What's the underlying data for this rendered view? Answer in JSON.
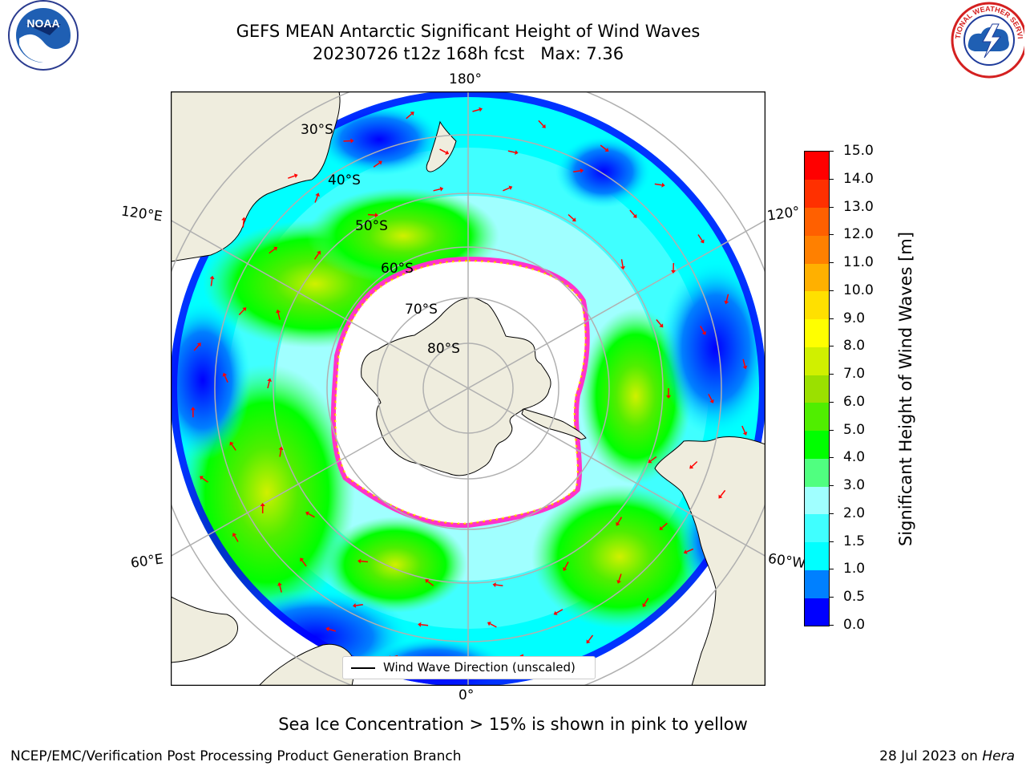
{
  "header": {
    "title_line1": "GEFS MEAN Antarctic Significant Height of Wind Waves",
    "title_line2": "20230726 t12z 168h fcst   Max: 7.36"
  },
  "logos": {
    "left": {
      "icon": "noaa-logo",
      "text": "NOAA"
    },
    "right": {
      "icon": "national-weather-service-logo",
      "text": "NATIONAL WEATHER SERVICE"
    }
  },
  "map": {
    "projection": "south-polar-stereographic",
    "meridian_labels": {
      "top": "180°",
      "bottom": "0°",
      "upper_left": "120°E",
      "upper_right": "120°",
      "lower_left": "60°E",
      "lower_right": "60°W"
    },
    "latitude_labels": [
      "30°S",
      "40°S",
      "50°S",
      "60°S",
      "70°S",
      "80°S"
    ],
    "arrow_color": "#ff0000",
    "land_color": "#efedde",
    "ice_edge_colors": [
      "#ff33cc",
      "#ff9900",
      "#ffff33"
    ]
  },
  "legend": {
    "label": "Wind Wave Direction (unscaled)"
  },
  "colorbar": {
    "title": "Significant Height of Wind Waves [m]",
    "ticks": [
      "0.0",
      "0.5",
      "1.0",
      "1.5",
      "2.0",
      "3.0",
      "4.0",
      "5.0",
      "6.0",
      "7.0",
      "8.0",
      "9.0",
      "10.0",
      "11.0",
      "12.0",
      "13.0",
      "14.0",
      "15.0"
    ],
    "colors": [
      "#0000ff",
      "#0080ff",
      "#00ffff",
      "#40ffff",
      "#a0ffff",
      "#50ff80",
      "#00ff00",
      "#50ee00",
      "#9be000",
      "#d0f000",
      "#ffff00",
      "#ffe000",
      "#ffb000",
      "#ff8000",
      "#ff6000",
      "#ff3000",
      "#ff0000"
    ]
  },
  "footnote": "Sea Ice Concentration > 15% is shown in pink to yellow",
  "credits": {
    "left": "NCEP/EMC/Verification Post Processing Product Generation Branch",
    "right_prefix": "28 Jul 2023 on ",
    "right_machine": "Hera"
  }
}
